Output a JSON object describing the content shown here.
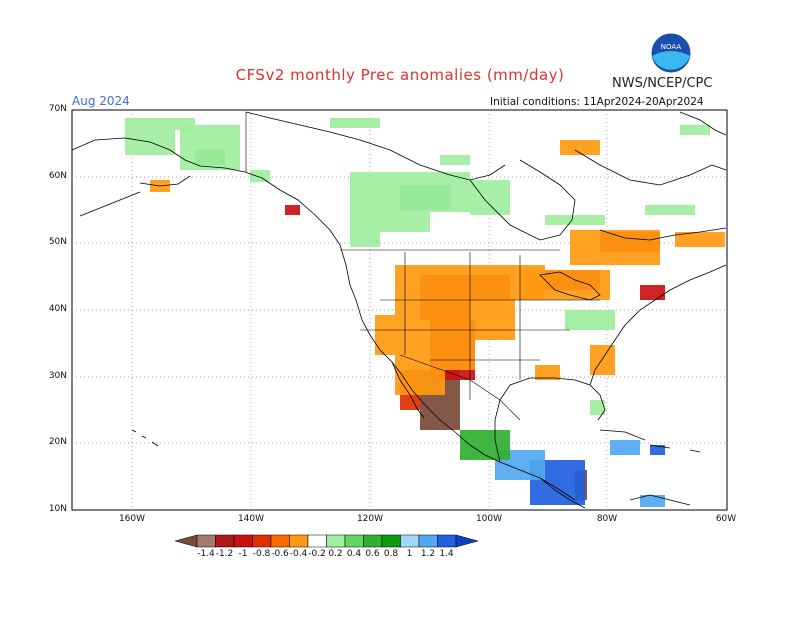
{
  "header": {
    "title": "CFSv2 monthly Prec anomalies (mm/day)",
    "agency": "NWS/NCEP/CPC",
    "valid_month": "Aug 2024",
    "initial_conditions": "Initial conditions: 11Apr2024-20Apr2024",
    "logo_text": "NOAA"
  },
  "axes": {
    "lat_labels": [
      "70N",
      "60N",
      "50N",
      "40N",
      "30N",
      "20N",
      "10N"
    ],
    "lon_labels": [
      "160W",
      "140W",
      "120W",
      "100W",
      "80W",
      "60W"
    ]
  },
  "colorbar": {
    "labels": [
      "-1.4",
      "-1.2",
      "-1",
      "-0.8",
      "-0.6",
      "-0.4",
      "-0.2",
      "0.2",
      "0.4",
      "0.6",
      "0.8",
      "1",
      "1.2",
      "1.4"
    ],
    "colors": [
      "#7a4a3a",
      "#a07a6a",
      "#b01818",
      "#cc1010",
      "#e03000",
      "#ff6a00",
      "#ff9a10",
      "#ffffff",
      "#a0eea0",
      "#60d860",
      "#30b030",
      "#109a10",
      "#a0d8f8",
      "#50a8f0",
      "#2060e0",
      "#1040c0"
    ]
  },
  "anomaly_colors": {
    "dry_strong": "#7a4a3a",
    "dry_red": "#cc1010",
    "dry_orange": "#ff9a10",
    "dry_redorange": "#e03000",
    "wet_light": "#a0eea0",
    "wet_green": "#30b030",
    "wet_blue": "#2060e0",
    "wet_lightblue": "#50a8f0"
  }
}
